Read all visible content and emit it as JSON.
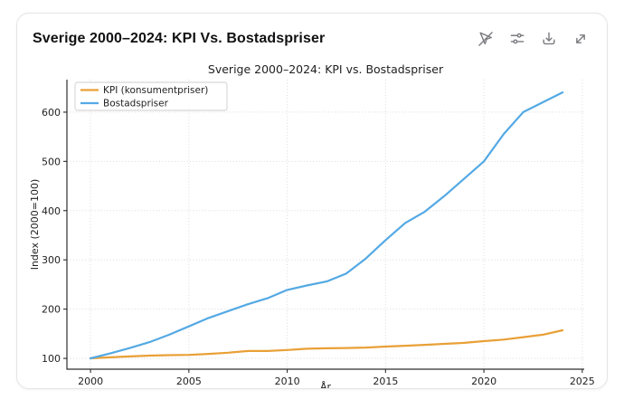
{
  "card": {
    "title": "Sverige 2000–2024: KPI Vs. Bostadspriser",
    "toolbar_icons": [
      "cursor-off-icon",
      "sliders-icon",
      "download-icon",
      "expand-icon"
    ]
  },
  "chart_data": {
    "type": "line",
    "title": "Sverige 2000–2024: KPI vs. Bostadspriser",
    "xlabel": "År",
    "ylabel": "Index (2000=100)",
    "x": [
      2000,
      2001,
      2002,
      2003,
      2004,
      2005,
      2006,
      2007,
      2008,
      2009,
      2010,
      2011,
      2012,
      2013,
      2014,
      2015,
      2016,
      2017,
      2018,
      2019,
      2020,
      2021,
      2022,
      2023,
      2024
    ],
    "series": [
      {
        "name": "KPI (konsumentpriser)",
        "color": "#E9A037",
        "values": [
          100,
          102,
          104,
          105.5,
          106.5,
          107,
          109,
          111.5,
          115,
          115,
          117,
          119.5,
          120.5,
          121,
          122,
          124,
          125.5,
          127.5,
          129.5,
          131.5,
          135,
          138,
          143,
          148,
          157
        ]
      },
      {
        "name": "Bostadspriser",
        "color": "#54A9E4",
        "values": [
          100,
          110,
          121,
          133,
          148,
          165,
          182,
          196,
          210,
          222,
          239,
          248,
          256,
          272,
          303,
          340,
          375,
          398,
          430,
          465,
          500,
          555,
          600,
          620,
          640
        ]
      }
    ],
    "xticks": [
      2000,
      2005,
      2010,
      2015,
      2020,
      2025
    ],
    "yticks": [
      100,
      200,
      300,
      400,
      500,
      600
    ],
    "xlim": [
      1998.8,
      2025.1
    ],
    "ylim": [
      78,
      666
    ],
    "grid": true,
    "legend_position": "upper left"
  }
}
